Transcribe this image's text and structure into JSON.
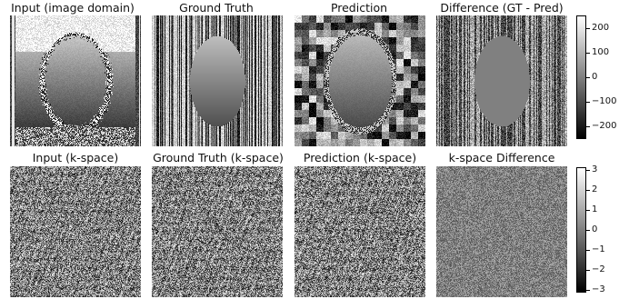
{
  "panels": [
    {
      "title": "Input (image domain)",
      "kind": "image_input"
    },
    {
      "title": "Ground Truth",
      "kind": "image_gt"
    },
    {
      "title": "Prediction",
      "kind": "image_pred"
    },
    {
      "title": "Difference (GT - Pred)",
      "kind": "image_diff"
    },
    {
      "title": "Input (k-space)",
      "kind": "kspace_input"
    },
    {
      "title": "Ground Truth (k-space)",
      "kind": "kspace_gt"
    },
    {
      "title": "Prediction (k-space)",
      "kind": "kspace_pred"
    },
    {
      "title": "k-space Difference",
      "kind": "kspace_diff"
    }
  ],
  "colorbars": [
    {
      "min": -250,
      "max": 250,
      "ticks": [
        "200",
        "100",
        "0",
        "−100",
        "−200"
      ],
      "tick_values": [
        200,
        100,
        0,
        -100,
        -200
      ]
    },
    {
      "min": -3.14,
      "max": 3.14,
      "ticks": [
        "3",
        "2",
        "1",
        "0",
        "−1",
        "−2",
        "−3"
      ],
      "tick_values": [
        3,
        2,
        1,
        0,
        -1,
        -2,
        -3
      ]
    }
  ],
  "colormap": "gray"
}
